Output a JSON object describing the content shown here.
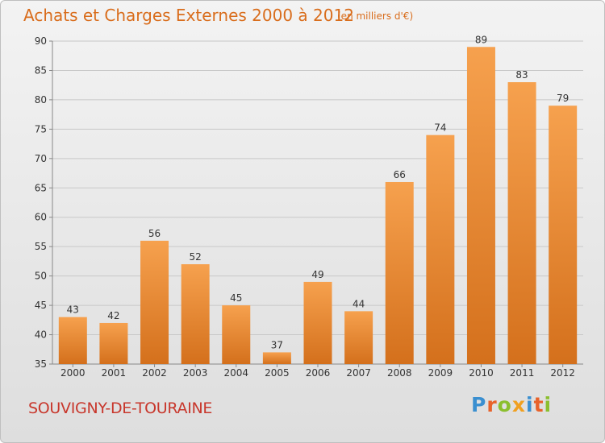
{
  "title": "Achats et Charges Externes 2000 à 2012",
  "subtitle": "(en milliers d'€)",
  "commune": "SOUVIGNY-DE-TOURAINE",
  "logo": {
    "text": "Proxiti",
    "letters": [
      {
        "ch": "P",
        "color": "#3a8fd0"
      },
      {
        "ch": "r",
        "color": "#e8622a"
      },
      {
        "ch": "o",
        "color": "#8bbf2e"
      },
      {
        "ch": "x",
        "color": "#f0a020"
      },
      {
        "ch": "i",
        "color": "#3a8fd0"
      },
      {
        "ch": "t",
        "color": "#e8622a"
      },
      {
        "ch": "i",
        "color": "#8bbf2e"
      }
    ]
  },
  "colors": {
    "bar_top": "#f6a14e",
    "bar_bottom": "#d4701c",
    "title": "#d96d1c",
    "commune": "#c8372c",
    "grid": "#c8c8c8",
    "axis_text": "#333333"
  },
  "chart_data": {
    "type": "bar",
    "title": "Achats et Charges Externes 2000 à 2012",
    "subtitle": "(en milliers d'€)",
    "categories": [
      "2000",
      "2001",
      "2002",
      "2003",
      "2004",
      "2005",
      "2006",
      "2007",
      "2008",
      "2009",
      "2010",
      "2011",
      "2012"
    ],
    "values": [
      43,
      42,
      56,
      52,
      45,
      37,
      49,
      44,
      66,
      74,
      89,
      83,
      79
    ],
    "ylim": [
      35,
      90
    ],
    "yticks": [
      35,
      40,
      45,
      50,
      55,
      60,
      65,
      70,
      75,
      80,
      85,
      90
    ],
    "grid": true,
    "data_labels": true
  }
}
